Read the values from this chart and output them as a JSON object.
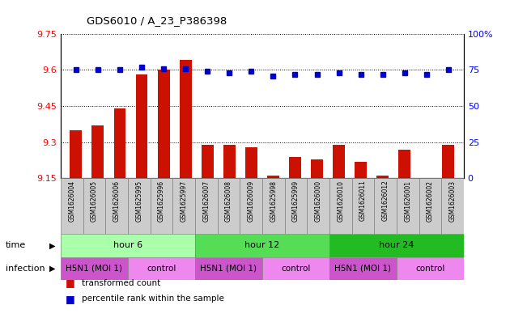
{
  "title": "GDS6010 / A_23_P386398",
  "samples": [
    "GSM1626004",
    "GSM1626005",
    "GSM1626006",
    "GSM1625995",
    "GSM1625996",
    "GSM1625997",
    "GSM1626007",
    "GSM1626008",
    "GSM1626009",
    "GSM1625998",
    "GSM1625999",
    "GSM1626000",
    "GSM1626010",
    "GSM1626011",
    "GSM1626012",
    "GSM1626001",
    "GSM1626002",
    "GSM1626003"
  ],
  "red_values": [
    9.35,
    9.37,
    9.44,
    9.58,
    9.6,
    9.64,
    9.29,
    9.29,
    9.28,
    9.16,
    9.24,
    9.23,
    9.29,
    9.22,
    9.16,
    9.27,
    9.15,
    9.29
  ],
  "blue_values": [
    75,
    75,
    75,
    77,
    76,
    76,
    74,
    73,
    74,
    71,
    72,
    72,
    73,
    72,
    72,
    73,
    72,
    75
  ],
  "ymin": 9.15,
  "ymax": 9.75,
  "yticks": [
    9.15,
    9.3,
    9.45,
    9.6,
    9.75
  ],
  "ytick_labels": [
    "9.15",
    "9.3",
    "9.45",
    "9.6",
    "9.75"
  ],
  "right_yticks": [
    0,
    25,
    50,
    75,
    100
  ],
  "right_ytick_labels": [
    "0",
    "25",
    "50",
    "75",
    "100%"
  ],
  "bar_color": "#cc1100",
  "dot_color": "#0000cc",
  "time_colors": [
    "#aaffaa",
    "#55dd55",
    "#22bb22"
  ],
  "time_labels": [
    "hour 6",
    "hour 12",
    "hour 24"
  ],
  "time_ranges": [
    [
      0,
      6
    ],
    [
      6,
      12
    ],
    [
      12,
      18
    ]
  ],
  "infection_labels": [
    "H5N1 (MOI 1)",
    "control",
    "H5N1 (MOI 1)",
    "control",
    "H5N1 (MOI 1)",
    "control"
  ],
  "infection_ranges": [
    [
      0,
      3
    ],
    [
      3,
      6
    ],
    [
      6,
      9
    ],
    [
      9,
      12
    ],
    [
      12,
      15
    ],
    [
      15,
      18
    ]
  ],
  "infection_colors": [
    "#cc55cc",
    "#ee88ee",
    "#cc55cc",
    "#ee88ee",
    "#cc55cc",
    "#ee88ee"
  ],
  "legend_red": "transformed count",
  "legend_blue": "percentile rank within the sample",
  "time_label": "time",
  "infection_label": "infection",
  "sample_bg": "#cccccc",
  "grid_color": "#000000"
}
